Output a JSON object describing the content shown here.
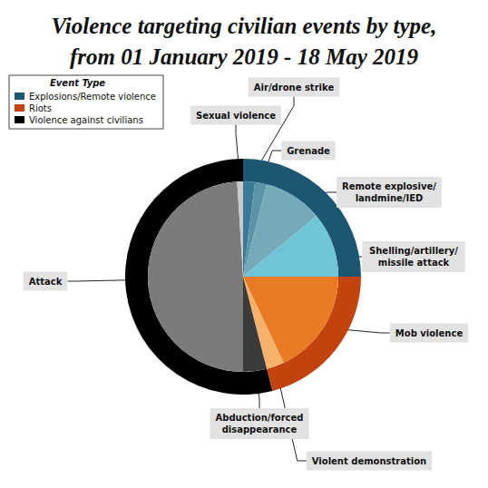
{
  "chart_data": {
    "type": "pie",
    "title": [
      "Violence targeting civilian events by type,",
      "from 01 January 2019 - 18 May 2019"
    ],
    "legend_title": "Event Type",
    "legend": "upper left",
    "series": [
      {
        "name": "Explosions/Remote violence",
        "color": "#1c5673",
        "categories": [
          "Air/drone strike",
          "Grenade",
          "Remote explosive/\nlandmine/IED",
          "Shelling/artillery/\nmissile attack"
        ],
        "values": [
          2,
          2,
          10,
          11
        ],
        "colors": [
          "#3a7a94",
          "#5c93a8",
          "#76aab9",
          "#70c4d7"
        ]
      },
      {
        "name": "Riots",
        "color": "#c2430e",
        "categories": [
          "Mob violence",
          "Violent demonstration"
        ],
        "values": [
          18,
          3
        ],
        "colors": [
          "#e97b25",
          "#f6b26b"
        ]
      },
      {
        "name": "Violence against civilians",
        "color": "#000000",
        "categories": [
          "Abduction/forced\ndisappearance",
          "Attack",
          "Sexual violence"
        ],
        "values": [
          4,
          49,
          1
        ],
        "colors": [
          "#3b3b3b",
          "#7b7b7b",
          "#c9c9c9"
        ]
      }
    ]
  }
}
